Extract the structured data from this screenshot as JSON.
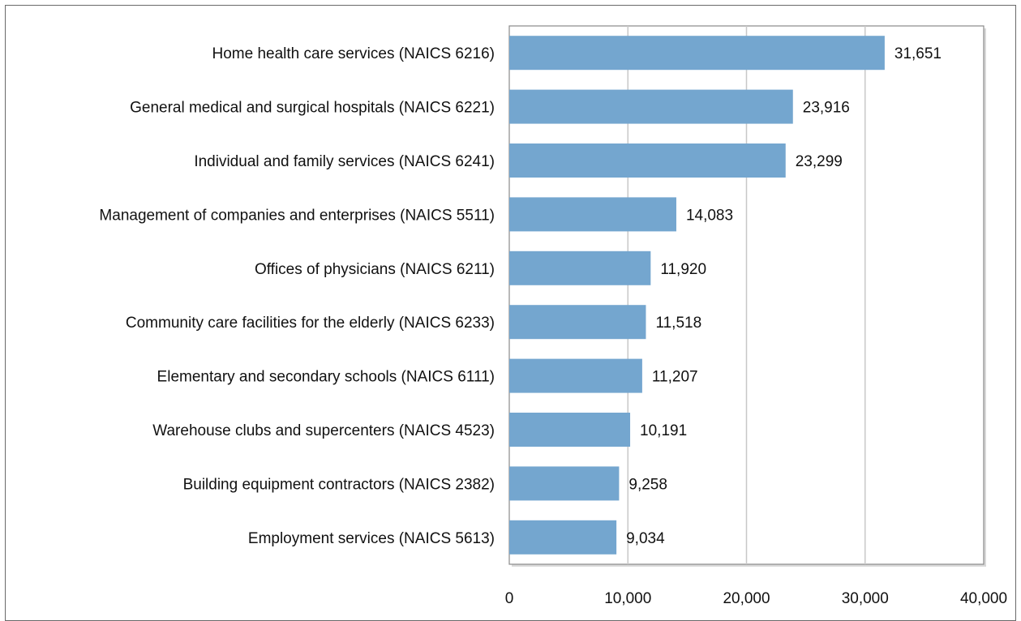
{
  "chart_data": {
    "type": "bar",
    "orientation": "horizontal",
    "title": "",
    "xlabel": "",
    "ylabel": "",
    "categories": [
      "Home health care services (NAICS 6216)",
      "General medical and surgical hospitals (NAICS 6221)",
      "Individual and family services (NAICS 6241)",
      "Management of companies and enterprises (NAICS 5511)",
      "Offices of physicians (NAICS 6211)",
      "Community care facilities for the elderly (NAICS 6233)",
      "Elementary and secondary schools (NAICS 6111)",
      "Warehouse clubs and supercenters (NAICS 4523)",
      "Building equipment contractors (NAICS 2382)",
      "Employment services (NAICS 5613)"
    ],
    "values": [
      31651,
      23916,
      23299,
      14083,
      11920,
      11518,
      11207,
      10191,
      9258,
      9034
    ],
    "value_labels": [
      "31,651",
      "23,916",
      "23,299",
      "14,083",
      "11,920",
      "11,518",
      "11,207",
      "10,191",
      "9,258",
      "9,034"
    ],
    "xlim": [
      0,
      40000
    ],
    "x_ticks": [
      0,
      10000,
      20000,
      30000,
      40000
    ],
    "x_tick_labels": [
      "0",
      "10,000",
      "20,000",
      "30,000",
      "40,000"
    ],
    "grid": "vertical",
    "legend": "none",
    "colors": {
      "bar": "#74a6cf",
      "grid": "#c8c8c8",
      "axis": "#8a8a8a"
    }
  }
}
